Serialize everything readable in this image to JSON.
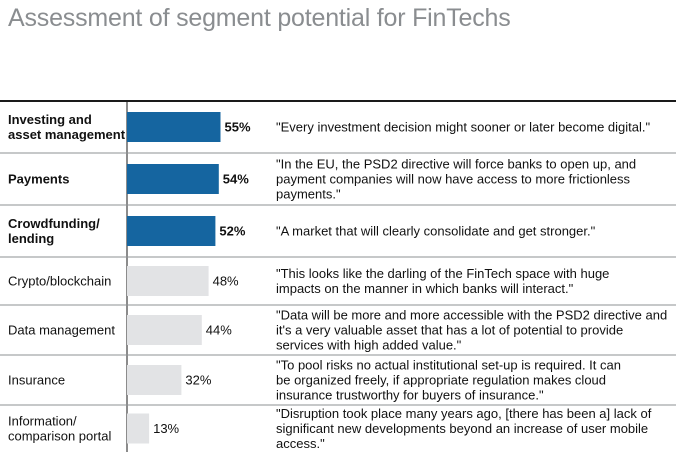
{
  "title": "Assessment of segment potential for FinTechs",
  "colors": {
    "highlight": "#1565a0",
    "normal": "#e2e3e5",
    "rule": "#1a1a1a",
    "divider": "#8e9193"
  },
  "chart_data": {
    "type": "bar",
    "orientation": "horizontal",
    "title": "Assessment of segment potential for FinTechs",
    "xlim": [
      0,
      100
    ],
    "categories": [
      "Investing and asset management",
      "Payments",
      "Crowdfunding/ lending",
      "Crypto/blockchain",
      "Data management",
      "Insurance",
      "Information/ comparison portal"
    ],
    "values": [
      55,
      54,
      52,
      48,
      44,
      32,
      13
    ],
    "value_labels": [
      "55%",
      "54%",
      "52%",
      "48%",
      "44%",
      "32%",
      "13%"
    ],
    "highlighted": [
      true,
      true,
      true,
      false,
      false,
      false,
      false
    ],
    "quotes": [
      "\"Every investment decision might sooner or later become digital.\"",
      "\"In the EU, the PSD2 directive will force banks to open up, and payment companies will now have access to more frictionless payments.\"",
      "\"A market that will clearly consolidate and get stronger.\"",
      "\"This looks like the darling of the FinTech space with huge impacts on the manner in which banks will interact.\"",
      "\"Data will be more and more accessible with the PSD2 directive and it's a very valuable asset that has a lot of potential to provide services with high added value.\"",
      "\"To pool risks no actual institutional set-up is required. It can be organized freely, if appropriate regulation makes cloud insurance trustworthy for buyers of insurance.\"",
      "\"Disruption took place many years ago, [there has been a] lack of significant new developments beyond an increase of user mobile access.\""
    ]
  }
}
